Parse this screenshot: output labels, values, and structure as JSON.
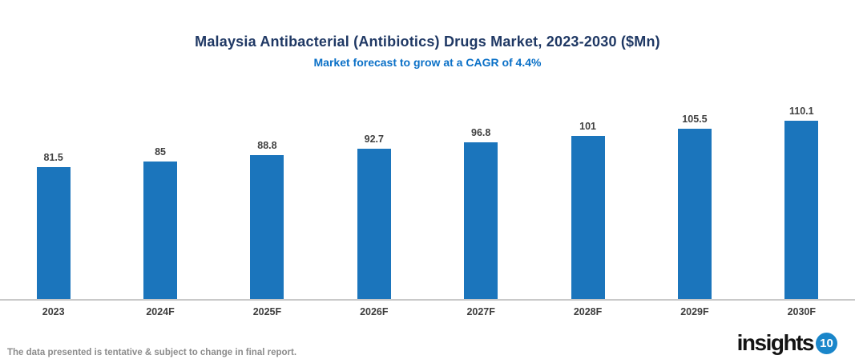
{
  "header": {
    "title": "Malaysia Antibacterial (Antibiotics) Drugs Market, 2023-2030 ($Mn)",
    "subtitle": "Market forecast to grow at a CAGR of 4.4%"
  },
  "footer": {
    "disclaimer": "The data presented is tentative & subject to change in final report."
  },
  "logo": {
    "text": "insights",
    "badge": "10"
  },
  "colors": {
    "bar": "#1B75BC",
    "title": "#1F3864",
    "subtitle": "#0A70C7",
    "axis_line": "#C9C9C9",
    "value_label": "#404040",
    "x_label": "#3D3D3D",
    "footer_text": "#8C8C8C",
    "logo_badge": "#1A86CA"
  },
  "chart_data": {
    "type": "bar",
    "title": "Malaysia Antibacterial (Antibiotics) Drugs Market, 2023-2030 ($Mn)",
    "subtitle": "Market forecast to grow at a CAGR of 4.4%",
    "categories": [
      "2023",
      "2024F",
      "2025F",
      "2026F",
      "2027F",
      "2028F",
      "2029F",
      "2030F"
    ],
    "values": [
      81.5,
      85,
      88.8,
      92.7,
      96.8,
      101,
      105.5,
      110.1
    ],
    "value_labels": [
      "81.5",
      "85",
      "88.8",
      "92.7",
      "96.8",
      "101",
      "105.5",
      "110.1"
    ],
    "xlabel": "",
    "ylabel": "",
    "ylim": [
      0,
      130
    ],
    "grid": false,
    "legend": false,
    "data_labels": true,
    "y_axis_visible": false
  }
}
